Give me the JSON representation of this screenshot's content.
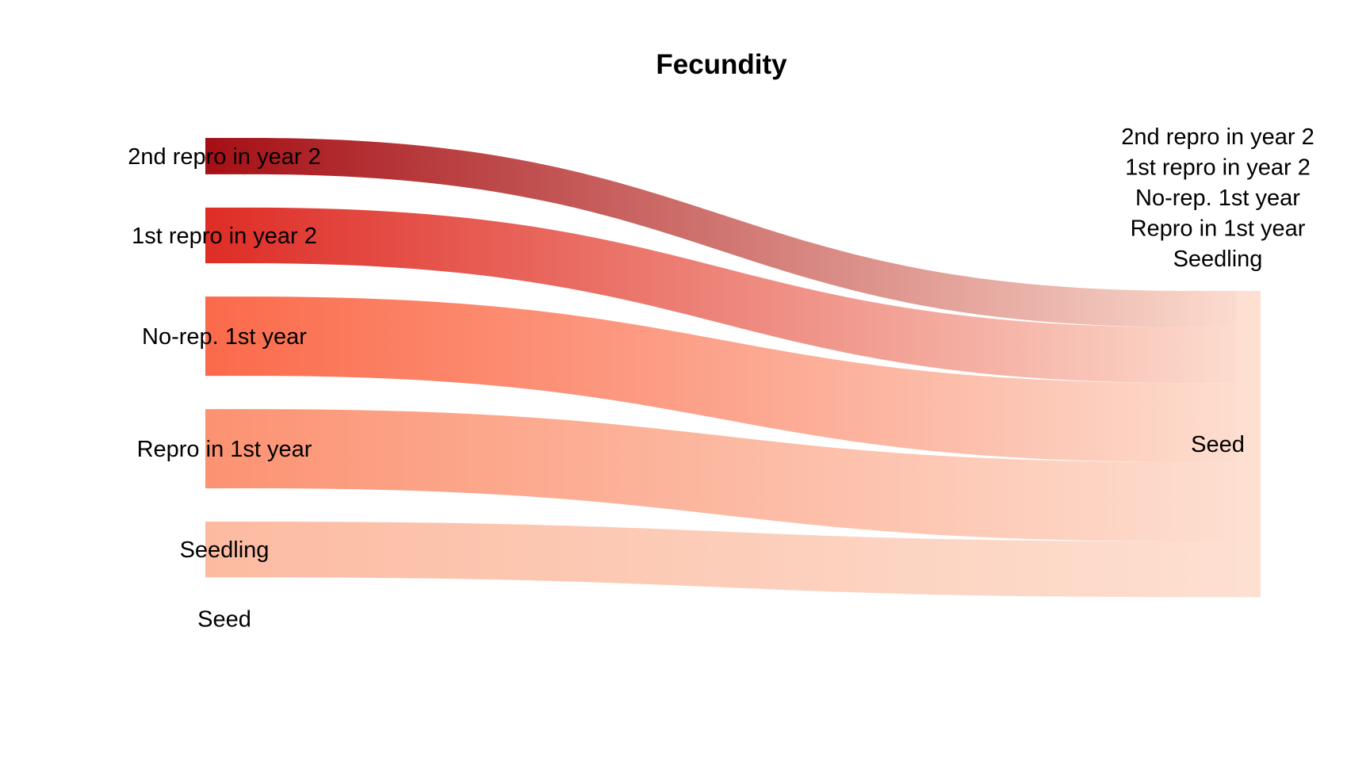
{
  "chart_data": {
    "type": "sankey",
    "title": "Fecundity",
    "sources": [
      {
        "label": "2nd repro in year 2",
        "value": 0.62,
        "color": "#A50F15"
      },
      {
        "label": "1st repro in year 2",
        "value": 0.95,
        "color": "#DE2D26"
      },
      {
        "label": "No-rep. 1st year",
        "value": 1.35,
        "color": "#FB6A4A"
      },
      {
        "label": "Repro in 1st year",
        "value": 1.35,
        "color": "#FC9272"
      },
      {
        "label": "Seedling",
        "value": 0.95,
        "color": "#FCBBA1"
      },
      {
        "label": "Seed",
        "value": 0,
        "color": "#FEE0D2"
      }
    ],
    "targets": [
      {
        "label": "2nd repro in year 2"
      },
      {
        "label": "1st repro in year 2"
      },
      {
        "label": "No-rep. 1st year"
      },
      {
        "label": "Repro in 1st year"
      },
      {
        "label": "Seedling"
      },
      {
        "label": "Seed",
        "color": "#FDE0D2"
      }
    ],
    "links": [
      {
        "source": "2nd repro in year 2",
        "target": "Seed",
        "value": 0.62
      },
      {
        "source": "1st repro in year 2",
        "target": "Seed",
        "value": 0.95
      },
      {
        "source": "No-rep. 1st year",
        "target": "Seed",
        "value": 1.35
      },
      {
        "source": "Repro in 1st year",
        "target": "Seed",
        "value": 1.35
      },
      {
        "source": "Seedling",
        "target": "Seed",
        "value": 0.95
      }
    ],
    "end_color": "#FDE0D2"
  }
}
